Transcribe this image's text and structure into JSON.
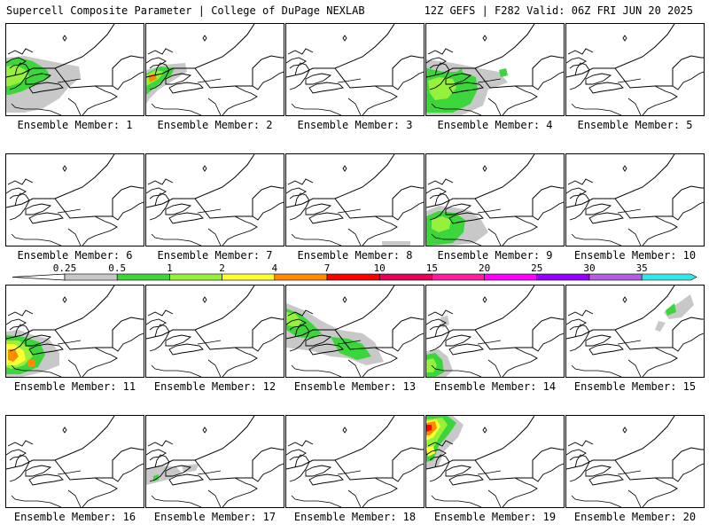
{
  "header": {
    "left": "Supercell Composite Parameter | College of DuPage NEXLAB",
    "right": "12Z GEFS | F282 Valid: 06Z FRI JUN 20 2025"
  },
  "legend": {
    "labels": [
      "0.25",
      "0.5",
      "1",
      "2",
      "4",
      "7",
      "10",
      "15",
      "20",
      "25",
      "30",
      "35"
    ],
    "colors": [
      "#c8c8c8",
      "#3cd63c",
      "#96f03c",
      "#ffff32",
      "#ff8c00",
      "#ff0000",
      "#e6005a",
      "#ff1ea0",
      "#ff00ff",
      "#9600ff",
      "#b060e0",
      "#32e6e6"
    ]
  },
  "panels": [
    {
      "label": "Ensemble Member: 1"
    },
    {
      "label": "Ensemble Member: 2"
    },
    {
      "label": "Ensemble Member: 3"
    },
    {
      "label": "Ensemble Member: 4"
    },
    {
      "label": "Ensemble Member: 5"
    },
    {
      "label": "Ensemble Member: 6"
    },
    {
      "label": "Ensemble Member: 7"
    },
    {
      "label": "Ensemble Member: 8"
    },
    {
      "label": "Ensemble Member: 9"
    },
    {
      "label": "Ensemble Member: 10"
    },
    {
      "label": "Ensemble Member: 11"
    },
    {
      "label": "Ensemble Member: 12"
    },
    {
      "label": "Ensemble Member: 13"
    },
    {
      "label": "Ensemble Member: 14"
    },
    {
      "label": "Ensemble Member: 15"
    },
    {
      "label": "Ensemble Member: 16"
    },
    {
      "label": "Ensemble Member: 17"
    },
    {
      "label": "Ensemble Member: 18"
    },
    {
      "label": "Ensemble Member: 19"
    },
    {
      "label": "Ensemble Member: 20"
    }
  ]
}
